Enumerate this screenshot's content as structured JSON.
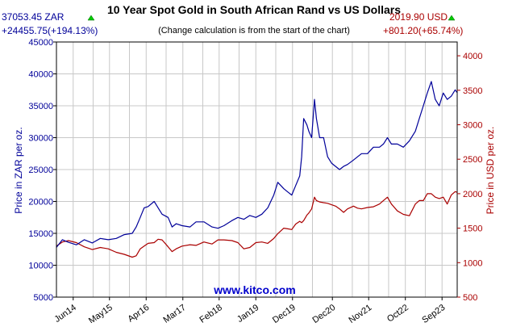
{
  "chart_data": {
    "type": "line",
    "title": "10 Year Spot Gold in South African Rand vs US Dollars",
    "subtitle": "(Change calculation is from the start of the chart)",
    "watermark": "www.kitco.com",
    "left_axis": {
      "label": "Price in ZAR per oz.",
      "ylim": [
        5000,
        45000
      ],
      "ticks": [
        5000,
        10000,
        15000,
        20000,
        25000,
        30000,
        35000,
        40000,
        45000
      ]
    },
    "right_axis": {
      "label": "Price in USD per oz.",
      "ylim": [
        500,
        4200
      ],
      "ticks": [
        500,
        1000,
        1500,
        2000,
        2500,
        3000,
        3500,
        4000
      ]
    },
    "x_axis": {
      "labels": [
        "Jun14",
        "May15",
        "Apr16",
        "Mar17",
        "Feb18",
        "Jan19",
        "Dec19",
        "Dec20",
        "Nov21",
        "Oct22",
        "Sep23"
      ],
      "label_positions": [
        2014.42,
        2015.33,
        2016.25,
        2017.17,
        2018.08,
        2019.0,
        2019.92,
        2020.92,
        2021.83,
        2022.75,
        2023.67
      ],
      "range": [
        2014.0,
        2024.05
      ],
      "grid_years": [
        2014.42,
        2014.92,
        2015.33,
        2015.83,
        2016.25,
        2016.75,
        2017.17,
        2017.67,
        2018.08,
        2018.58,
        2019.0,
        2019.5,
        2019.92,
        2020.42,
        2020.92,
        2021.42,
        2021.83,
        2022.33,
        2022.75,
        2023.25,
        2023.67
      ]
    },
    "grid": true,
    "series": [
      {
        "name": "ZAR",
        "axis": "left",
        "color": "#000099",
        "last_value_label": "37053.45 ZAR",
        "change_label": "+24455.75(+194.13%)",
        "x": [
          2014.0,
          2014.15,
          2014.3,
          2014.5,
          2014.7,
          2014.9,
          2015.1,
          2015.3,
          2015.5,
          2015.7,
          2015.9,
          2016.0,
          2016.1,
          2016.2,
          2016.3,
          2016.45,
          2016.55,
          2016.65,
          2016.8,
          2016.9,
          2017.0,
          2017.15,
          2017.35,
          2017.5,
          2017.7,
          2017.9,
          2018.05,
          2018.2,
          2018.4,
          2018.55,
          2018.7,
          2018.85,
          2019.0,
          2019.15,
          2019.3,
          2019.45,
          2019.55,
          2019.7,
          2019.8,
          2019.9,
          2020.0,
          2020.1,
          2020.15,
          2020.2,
          2020.28,
          2020.33,
          2020.4,
          2020.47,
          2020.52,
          2020.6,
          2020.7,
          2020.8,
          2020.9,
          2021.0,
          2021.1,
          2021.2,
          2021.3,
          2021.45,
          2021.55,
          2021.65,
          2021.8,
          2021.95,
          2022.1,
          2022.2,
          2022.3,
          2022.4,
          2022.55,
          2022.7,
          2022.85,
          2023.0,
          2023.1,
          2023.2,
          2023.3,
          2023.4,
          2023.5,
          2023.6,
          2023.7,
          2023.8,
          2023.9,
          2024.0,
          2024.05
        ],
        "y": [
          12800,
          14000,
          13600,
          13200,
          14000,
          13500,
          14200,
          14000,
          14200,
          14800,
          15000,
          16000,
          17500,
          19000,
          19200,
          20000,
          19000,
          18000,
          17500,
          16000,
          16500,
          16200,
          16000,
          16800,
          16800,
          16000,
          15800,
          16200,
          17000,
          17500,
          17200,
          17800,
          17500,
          18000,
          19000,
          21000,
          23000,
          22000,
          21500,
          21000,
          22500,
          24000,
          27000,
          33000,
          32000,
          31000,
          30000,
          36000,
          33000,
          30000,
          30000,
          27000,
          26000,
          25500,
          25000,
          25500,
          25800,
          26500,
          27000,
          27500,
          27500,
          28500,
          28500,
          29000,
          30000,
          29000,
          29000,
          28500,
          29500,
          31000,
          33000,
          35000,
          37000,
          38800,
          36000,
          35000,
          37000,
          36000,
          36500,
          37500,
          37053
        ]
      },
      {
        "name": "USD",
        "axis": "right",
        "color": "#aa0000",
        "last_value_label": "2019.90 USD",
        "change_label": "+801.20(+65.74%)",
        "x": [
          2014.0,
          2014.15,
          2014.3,
          2014.5,
          2014.7,
          2014.9,
          2015.1,
          2015.3,
          2015.5,
          2015.7,
          2015.9,
          2016.0,
          2016.1,
          2016.2,
          2016.3,
          2016.45,
          2016.55,
          2016.65,
          2016.8,
          2016.9,
          2017.0,
          2017.15,
          2017.35,
          2017.5,
          2017.7,
          2017.9,
          2018.05,
          2018.2,
          2018.4,
          2018.55,
          2018.7,
          2018.85,
          2019.0,
          2019.15,
          2019.3,
          2019.45,
          2019.55,
          2019.7,
          2019.8,
          2019.9,
          2020.0,
          2020.1,
          2020.15,
          2020.2,
          2020.28,
          2020.33,
          2020.4,
          2020.47,
          2020.52,
          2020.6,
          2020.7,
          2020.8,
          2020.9,
          2021.0,
          2021.1,
          2021.2,
          2021.3,
          2021.45,
          2021.55,
          2021.65,
          2021.8,
          2021.95,
          2022.1,
          2022.2,
          2022.3,
          2022.4,
          2022.55,
          2022.7,
          2022.85,
          2023.0,
          2023.1,
          2023.2,
          2023.3,
          2023.4,
          2023.5,
          2023.6,
          2023.7,
          2023.8,
          2023.9,
          2024.0,
          2024.05
        ],
        "y": [
          1240,
          1300,
          1320,
          1290,
          1230,
          1190,
          1220,
          1200,
          1150,
          1120,
          1080,
          1100,
          1200,
          1240,
          1280,
          1290,
          1340,
          1330,
          1230,
          1160,
          1200,
          1240,
          1260,
          1250,
          1300,
          1270,
          1330,
          1330,
          1320,
          1290,
          1200,
          1220,
          1290,
          1300,
          1280,
          1350,
          1420,
          1500,
          1490,
          1480,
          1560,
          1600,
          1580,
          1610,
          1690,
          1720,
          1780,
          1950,
          1900,
          1880,
          1870,
          1860,
          1840,
          1820,
          1780,
          1730,
          1780,
          1820,
          1790,
          1780,
          1800,
          1810,
          1850,
          1900,
          1950,
          1850,
          1750,
          1700,
          1680,
          1850,
          1900,
          1900,
          2000,
          2000,
          1950,
          1930,
          1950,
          1850,
          1980,
          2030,
          2020
        ]
      }
    ]
  }
}
